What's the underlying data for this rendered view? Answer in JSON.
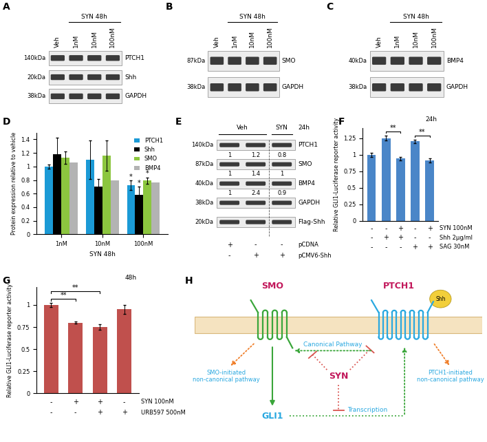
{
  "blots": [
    {
      "panel": "A",
      "lanes": [
        "Veh",
        "1nM",
        "10nM",
        "100nM"
      ],
      "groups": [
        {
          "label": "SYN 48h",
          "lanes": [
            1,
            3
          ]
        }
      ],
      "rows": [
        {
          "name": "PTCH1",
          "kda": "140kDa"
        },
        {
          "name": "Shh",
          "kda": "20kDa"
        },
        {
          "name": "GAPDH",
          "kda": "38kDa"
        }
      ]
    },
    {
      "panel": "B",
      "lanes": [
        "Veh",
        "1nM",
        "10nM",
        "100nM"
      ],
      "groups": [
        {
          "label": "SYN 48h",
          "lanes": [
            1,
            3
          ]
        }
      ],
      "rows": [
        {
          "name": "SMO",
          "kda": "87kDa"
        },
        {
          "name": "GAPDH",
          "kda": "38kDa"
        }
      ]
    },
    {
      "panel": "C",
      "lanes": [
        "Veh",
        "1nM",
        "10nM",
        "100nM"
      ],
      "groups": [
        {
          "label": "SYN 48h",
          "lanes": [
            1,
            3
          ]
        }
      ],
      "rows": [
        {
          "name": "BMP4",
          "kda": "40kDa"
        },
        {
          "name": "GAPDH",
          "kda": "38kDa"
        }
      ]
    },
    {
      "panel": "E",
      "lanes": [
        null,
        null,
        null
      ],
      "groups": [
        {
          "label": "Veh",
          "lanes": [
            0,
            1
          ]
        },
        {
          "label": "SYN",
          "lanes": [
            2,
            2
          ]
        }
      ],
      "note": "24h",
      "rows": [
        {
          "name": "PTCH1",
          "kda": "140kDa",
          "values": [
            1,
            1.2,
            0.8
          ]
        },
        {
          "name": "SMO",
          "kda": "87kDa",
          "values": [
            1,
            1.4,
            1
          ]
        },
        {
          "name": "BMP4",
          "kda": "40kDa",
          "values": [
            1,
            2.4,
            0.9
          ]
        },
        {
          "name": "GAPDH",
          "kda": "38kDa"
        },
        {
          "name": "Flag-Shh",
          "kda": "20kDa"
        }
      ],
      "plasmids": [
        {
          "name": "pCDNA",
          "signs": [
            "+",
            "-",
            "-"
          ]
        },
        {
          "name": "pCMV6-Shh",
          "signs": [
            "-",
            "+",
            "+"
          ]
        }
      ]
    }
  ],
  "chart_data": [
    {
      "panel": "D",
      "type": "bar",
      "categories": [
        "1nM",
        "10nM",
        "100nM"
      ],
      "x_label": "SYN 48h",
      "y_label": "Protein expression relative to vehicle",
      "ylim": [
        0,
        1.5
      ],
      "yticks": [
        0,
        0.2,
        0.4,
        0.6,
        0.8,
        1,
        1.2,
        1.4
      ],
      "legend": "upper right",
      "series": [
        {
          "name": "PTCH1",
          "color": "#1b9ad6",
          "values": [
            1.0,
            1.1,
            0.72
          ],
          "errors": [
            0.03,
            0.28,
            0.07
          ],
          "significance": [
            null,
            null,
            "*"
          ]
        },
        {
          "name": "Shh",
          "color": "#000000",
          "values": [
            1.18,
            0.7,
            0.58
          ],
          "errors": [
            0.24,
            0.12,
            0.12
          ],
          "significance": [
            null,
            null,
            "*"
          ]
        },
        {
          "name": "SMO",
          "color": "#8cc63f",
          "values": [
            1.13,
            1.16,
            0.79
          ],
          "errors": [
            0.09,
            0.22,
            0.05
          ],
          "significance": [
            null,
            null,
            "*"
          ]
        },
        {
          "name": "BMP4",
          "color": "#b3b3b3",
          "values": [
            1.06,
            0.8,
            0.76
          ]
        }
      ]
    },
    {
      "panel": "F",
      "type": "bar",
      "categories": [
        null,
        null,
        null,
        null,
        null
      ],
      "values": [
        1.0,
        1.25,
        0.94,
        1.2,
        0.91
      ],
      "errors": [
        0.03,
        0.04,
        0.03,
        0.03,
        0.03
      ],
      "color": "#4a86c8",
      "y_label": "Relative GLI1-Luciferase reporter activity",
      "ylim": [
        0,
        1.4
      ],
      "yticks": [
        0,
        0.25,
        0.5,
        0.75,
        1,
        1.25
      ],
      "note": "24h",
      "significance": [
        {
          "from": 1,
          "to": 2,
          "label": "**"
        },
        {
          "from": 3,
          "to": 4,
          "label": "**"
        }
      ],
      "conditions": [
        {
          "name": "SYN 100nM",
          "signs": [
            "-",
            "-",
            "+",
            "-",
            "+"
          ]
        },
        {
          "name": "Shh 2µg/ml",
          "signs": [
            "-",
            "+",
            "+",
            "-",
            "-"
          ]
        },
        {
          "name": "SAG 30nM",
          "signs": [
            "-",
            "-",
            "-",
            "+",
            "+"
          ]
        }
      ]
    },
    {
      "panel": "G",
      "type": "bar",
      "categories": [
        null,
        null,
        null,
        null
      ],
      "values": [
        1.0,
        0.8,
        0.75,
        0.95
      ],
      "errors": [
        0.02,
        0.01,
        0.03,
        0.05
      ],
      "color": "#c0504d",
      "y_label": "Relative GLI1-Luciferase reporter activity",
      "ylim": [
        0,
        1.2
      ],
      "yticks": [
        0,
        0.25,
        0.5,
        0.75,
        1
      ],
      "note": "48h",
      "significance": [
        {
          "from": 0,
          "to": 1,
          "label": "**"
        },
        {
          "from": 0,
          "to": 2,
          "label": "**"
        }
      ],
      "conditions": [
        {
          "name": "SYN 100nM",
          "signs": [
            "-",
            "+",
            "+",
            "-"
          ]
        },
        {
          "name": "URB597 500nM",
          "signs": [
            "-",
            "-",
            "+",
            "+"
          ]
        }
      ]
    }
  ],
  "diagram": {
    "panel": "H",
    "labels": {
      "smo": "SMO",
      "ptch1": "PTCH1",
      "shh": "Shh",
      "canonical": "Canonical Pathway",
      "syn": "SYN",
      "gli1": "GLI1",
      "transcription": "Transcription",
      "smo_noncanonical": "SMO-initiated\nnon-canonical pathway",
      "ptch1_noncanonical": "PTCH1-initiated\nnon-canonical pathway"
    }
  }
}
